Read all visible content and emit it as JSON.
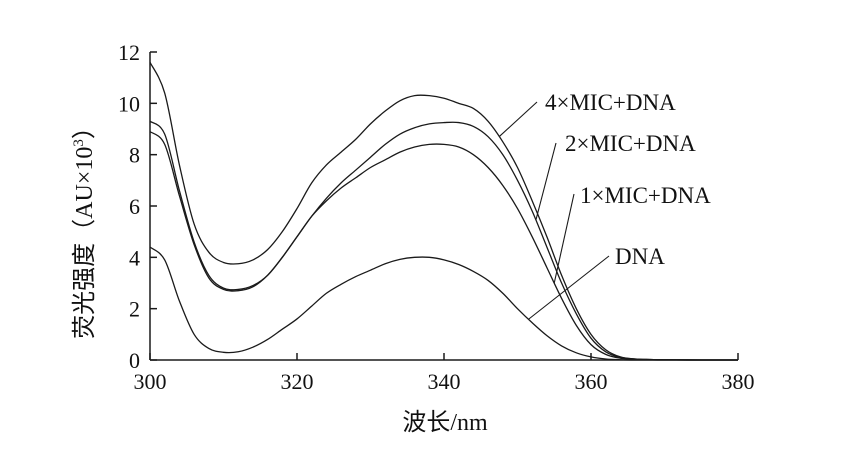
{
  "chart_data": {
    "type": "line",
    "xlabel": "波长/nm",
    "ylabel": "荧光强度（AU×10",
    "ylabel_superscript": "3",
    "ylabel_close": "）",
    "xlim": [
      300,
      380
    ],
    "ylim": [
      0,
      12
    ],
    "x_ticks": [
      300,
      320,
      340,
      360,
      380
    ],
    "y_ticks": [
      0,
      2,
      4,
      6,
      8,
      10,
      12
    ],
    "grid": false,
    "legend": "inline labels with leader lines",
    "colors": {
      "line": "#1a1a1a",
      "axis": "#1a1a1a"
    },
    "series": [
      {
        "name": "4×MIC+DNA",
        "x": [
          300,
          302,
          304,
          306,
          308,
          310,
          312,
          314,
          316,
          318,
          320,
          322,
          324,
          326,
          328,
          330,
          332,
          334,
          336,
          338,
          340,
          342,
          344,
          346,
          348,
          350,
          352,
          354,
          356,
          358,
          360,
          362,
          364,
          366,
          368,
          370,
          375,
          380
        ],
        "y": [
          11.6,
          10.4,
          7.6,
          5.3,
          4.2,
          3.8,
          3.75,
          3.9,
          4.3,
          5.0,
          5.9,
          6.9,
          7.6,
          8.1,
          8.6,
          9.2,
          9.7,
          10.1,
          10.3,
          10.3,
          10.2,
          10.0,
          9.8,
          9.3,
          8.5,
          7.5,
          6.2,
          4.8,
          3.3,
          2.0,
          1.0,
          0.4,
          0.12,
          0.04,
          0.02,
          0.01,
          0.0,
          0.0
        ]
      },
      {
        "name": "2×MIC+DNA",
        "x": [
          300,
          302,
          304,
          306,
          308,
          310,
          312,
          314,
          316,
          318,
          320,
          322,
          324,
          326,
          328,
          330,
          332,
          334,
          336,
          338,
          340,
          342,
          344,
          346,
          348,
          350,
          352,
          354,
          356,
          358,
          360,
          362,
          364,
          366,
          368,
          370,
          375,
          380
        ],
        "y": [
          9.3,
          8.8,
          6.6,
          4.6,
          3.3,
          2.8,
          2.75,
          2.9,
          3.3,
          4.0,
          4.8,
          5.6,
          6.3,
          6.9,
          7.4,
          7.9,
          8.4,
          8.8,
          9.05,
          9.2,
          9.25,
          9.25,
          9.1,
          8.7,
          8.0,
          7.0,
          5.8,
          4.4,
          3.0,
          1.8,
          0.85,
          0.32,
          0.1,
          0.04,
          0.02,
          0.01,
          0.0,
          0.0
        ]
      },
      {
        "name": "1×MIC+DNA",
        "x": [
          300,
          302,
          304,
          306,
          308,
          310,
          312,
          314,
          316,
          318,
          320,
          322,
          324,
          326,
          328,
          330,
          332,
          334,
          336,
          338,
          340,
          342,
          344,
          346,
          348,
          350,
          352,
          354,
          356,
          358,
          360,
          362,
          364,
          366,
          368,
          370,
          375,
          380
        ],
        "y": [
          8.9,
          8.4,
          6.4,
          4.5,
          3.2,
          2.75,
          2.7,
          2.85,
          3.3,
          4.0,
          4.8,
          5.6,
          6.2,
          6.7,
          7.1,
          7.5,
          7.8,
          8.1,
          8.3,
          8.4,
          8.4,
          8.3,
          8.0,
          7.5,
          6.8,
          5.9,
          4.8,
          3.6,
          2.4,
          1.35,
          0.6,
          0.22,
          0.07,
          0.03,
          0.01,
          0.0,
          0.0,
          0.0
        ]
      },
      {
        "name": "DNA",
        "x": [
          300,
          302,
          304,
          306,
          308,
          310,
          312,
          314,
          316,
          318,
          320,
          322,
          324,
          326,
          328,
          330,
          332,
          334,
          336,
          338,
          340,
          342,
          344,
          346,
          348,
          350,
          352,
          354,
          356,
          358,
          360,
          362,
          364,
          366,
          368,
          370,
          375,
          380
        ],
        "y": [
          4.4,
          3.9,
          2.3,
          1.0,
          0.45,
          0.3,
          0.32,
          0.5,
          0.8,
          1.2,
          1.6,
          2.1,
          2.6,
          2.95,
          3.25,
          3.5,
          3.75,
          3.92,
          4.0,
          4.0,
          3.9,
          3.72,
          3.45,
          3.1,
          2.6,
          2.0,
          1.45,
          0.95,
          0.55,
          0.28,
          0.12,
          0.04,
          0.01,
          0.0,
          0.0,
          0.0,
          0.0,
          0.0
        ]
      }
    ],
    "labels": [
      {
        "text": "4×MIC+DNA",
        "anchor_x": 347.5
      },
      {
        "text": "2×MIC+DNA",
        "anchor_x": 352.5
      },
      {
        "text": "1×MIC+DNA",
        "anchor_x": 355.0
      },
      {
        "text": "DNA",
        "anchor_x": 351.5
      }
    ]
  }
}
